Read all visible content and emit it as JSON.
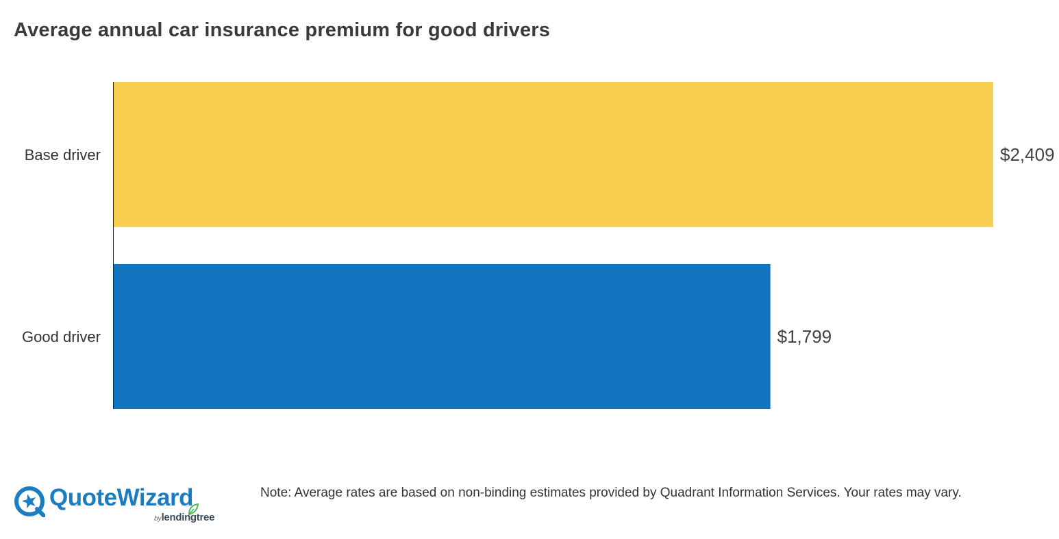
{
  "chart_data": {
    "type": "bar",
    "orientation": "horizontal",
    "title": "Average annual car insurance premium for good drivers",
    "categories": [
      "Base driver",
      "Good driver"
    ],
    "values": [
      2409,
      1799
    ],
    "value_labels": [
      "$2,409",
      "$1,799"
    ],
    "colors": [
      "#f9cf52",
      "#1075be"
    ],
    "xlim": [
      0,
      2409
    ],
    "grid": false,
    "legend": "none"
  },
  "footer": {
    "note": "Note: Average rates are based on non-binding estimates provided by Quadrant Information Services. Your rates may vary."
  },
  "logo": {
    "name": "QuoteWizard",
    "by": "by",
    "parent": "lendingtree",
    "icon": "star-circle-icon",
    "leaf_icon": "leaf-icon",
    "color": "#1a7cc1",
    "leaf_color": "#4cb85c"
  }
}
